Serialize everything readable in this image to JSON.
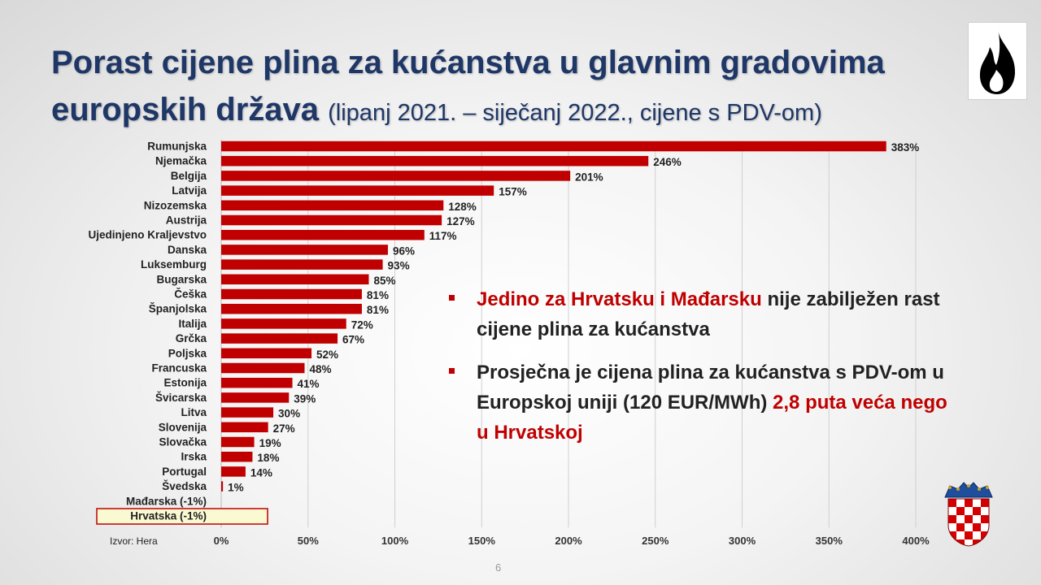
{
  "slide": {
    "title_main": "Porast cijene plina za kućanstva u glavnim gradovima europskih država",
    "title_sub": "(lipanj 2021. – siječanj 2022., cijene s PDV-om)",
    "source": "Izvor: Hera",
    "page_number": "6"
  },
  "bullets": [
    {
      "red_text": "Jedino za Hrvatsku i Mađarsku",
      "text": " nije zabilježen rast cijene plina za kućanstva"
    },
    {
      "text": "Prosječna je cijena plina za kućanstva s PDV-om u Europskoj uniji (120 EUR/MWh) ",
      "red_text": "2,8 puta veća nego u Hrvatskoj"
    }
  ],
  "colors": {
    "bar": "#c00000",
    "title": "#1f3767",
    "highlight_border": "#c00000",
    "highlight_fill": "#fafad2"
  },
  "icons": {
    "logo": "flame-icon",
    "coat_of_arms": "croatian-coat-of-arms-icon"
  },
  "chart_data": {
    "type": "bar",
    "orientation": "horizontal",
    "categories": [
      "Rumunjska",
      "Njemačka",
      "Belgija",
      "Latvija",
      "Nizozemska",
      "Austrija",
      "Ujedinjeno Kraljevstvo",
      "Danska",
      "Luksemburg",
      "Bugarska",
      "Češka",
      "Španjolska",
      "Italija",
      "Grčka",
      "Poljska",
      "Francuska",
      "Estonija",
      "Švicarska",
      "Litva",
      "Slovenija",
      "Slovačka",
      "Irska",
      "Portugal",
      "Švedska",
      "Mađarska (-1%)",
      "Hrvatska (-1%)"
    ],
    "values": [
      383,
      246,
      201,
      157,
      128,
      127,
      117,
      96,
      93,
      85,
      81,
      81,
      72,
      67,
      52,
      48,
      41,
      39,
      30,
      27,
      19,
      18,
      14,
      1,
      -1,
      -1
    ],
    "data_labels": [
      "383%",
      "246%",
      "201%",
      "157%",
      "128%",
      "127%",
      "117%",
      "96%",
      "93%",
      "85%",
      "81%",
      "81%",
      "72%",
      "67%",
      "52%",
      "48%",
      "41%",
      "39%",
      "30%",
      "27%",
      "19%",
      "18%",
      "14%",
      "1%",
      "",
      ""
    ],
    "xlim": [
      0,
      400
    ],
    "xticks": [
      "0%",
      "50%",
      "100%",
      "150%",
      "200%",
      "250%",
      "300%",
      "350%",
      "400%"
    ],
    "highlighted_category": "Hrvatska (-1%)",
    "grid": "vertical"
  }
}
